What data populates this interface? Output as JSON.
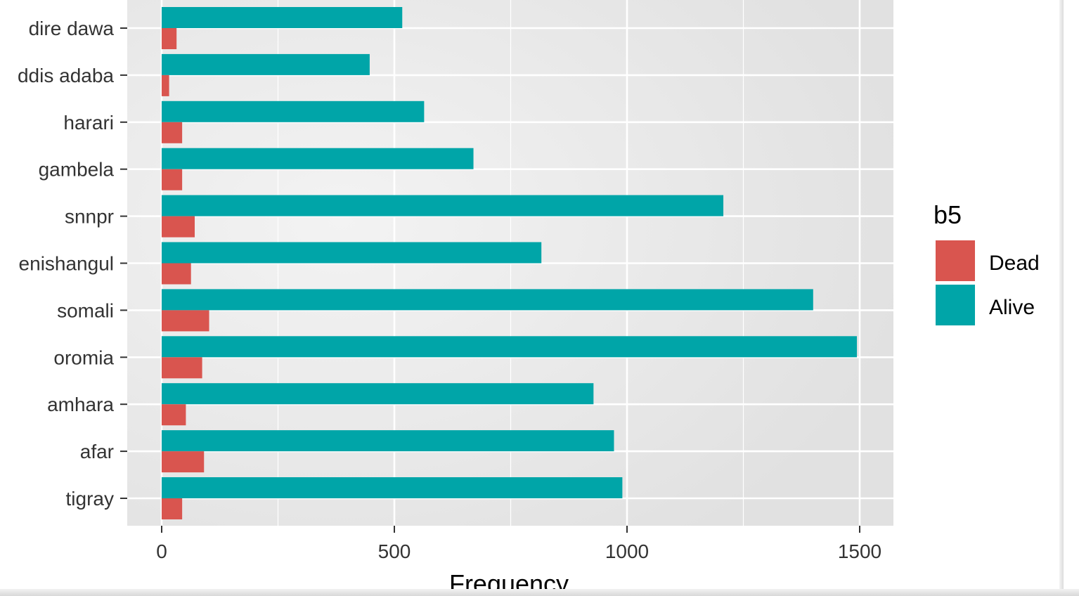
{
  "chart_data": {
    "type": "bar",
    "orientation": "horizontal",
    "grouped": true,
    "categories": [
      "dire dawa",
      "ddis adaba",
      "harari",
      "gambela",
      "snnpr",
      "enishangul",
      "somali",
      "oromia",
      "amhara",
      "afar",
      "tigray"
    ],
    "series": [
      {
        "name": "Alive",
        "color": "#00A5A8",
        "values": [
          517,
          447,
          564,
          670,
          1207,
          816,
          1400,
          1494,
          928,
          972,
          990
        ]
      },
      {
        "name": "Dead",
        "color": "#D9554F",
        "values": [
          32,
          16,
          44,
          44,
          71,
          63,
          102,
          87,
          52,
          91,
          44
        ]
      }
    ],
    "xlabel": "Frequency",
    "ylabel": "",
    "xlim": [
      -75,
      1565
    ],
    "xticks": [
      0,
      500,
      1000,
      1500
    ],
    "xtick_labels": [
      "0",
      "500",
      "1000",
      "1500"
    ],
    "legend": {
      "title": "b5",
      "position": "right",
      "entries": [
        "Dead",
        "Alive"
      ]
    },
    "grid": true,
    "panel_background": "#E5E5E5"
  }
}
